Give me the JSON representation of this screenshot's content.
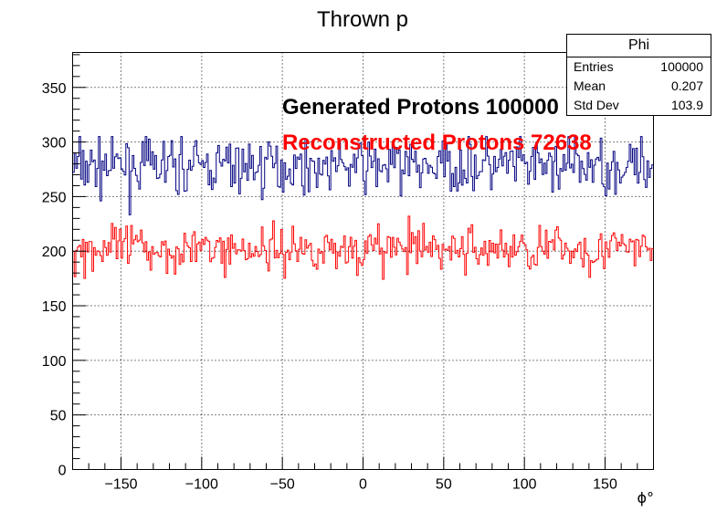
{
  "chart_data": {
    "type": "histogram",
    "title": "Thrown p",
    "xlabel": "ϕ°",
    "ylabel": "",
    "xlim": [
      -180,
      180
    ],
    "ylim": [
      0,
      382
    ],
    "x_ticks": [
      -150,
      -100,
      -50,
      0,
      50,
      100,
      150
    ],
    "y_ticks": [
      0,
      50,
      100,
      150,
      200,
      250,
      300,
      350
    ],
    "grid": true,
    "bins": 360,
    "annotations": [
      {
        "text": "Generated Protons 100000",
        "color": "#000000"
      },
      {
        "text": "Reconstructed Protons 72638",
        "color": "#ff0000"
      }
    ],
    "series": [
      {
        "color": "#000080",
        "mean_level": 277.8,
        "min": 222,
        "max": 305
      },
      {
        "color": "#ff0000",
        "mean_level": 202,
        "min": 149,
        "max": 240
      }
    ]
  },
  "stats": {
    "name": "Phi",
    "entries_label": "Entries",
    "entries": "100000",
    "mean_label": "Mean",
    "mean": "0.207",
    "std_label": "Std Dev",
    "std": "103.9"
  }
}
